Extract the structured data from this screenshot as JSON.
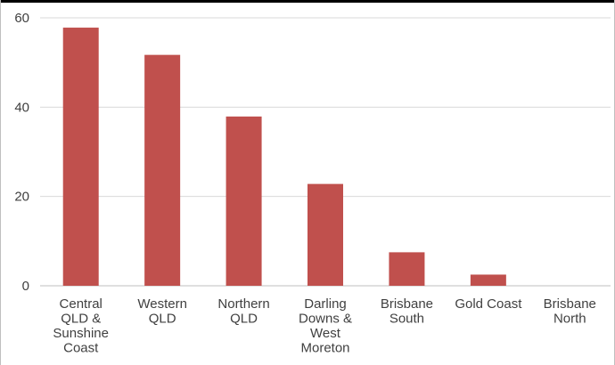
{
  "chart_data": {
    "type": "bar",
    "title": "",
    "xlabel": "",
    "ylabel": "",
    "categories": [
      [
        "Central",
        "QLD &",
        "Sunshine",
        "Coast"
      ],
      [
        "Western",
        "QLD"
      ],
      [
        "Northern",
        "QLD"
      ],
      [
        "Darling",
        "Downs &",
        "West",
        "Moreton"
      ],
      [
        "Brisbane",
        "South"
      ],
      [
        "Gold Coast"
      ],
      [
        "Brisbane",
        "North"
      ]
    ],
    "values": [
      57.8,
      51.7,
      37.9,
      22.8,
      7.5,
      2.5,
      0
    ],
    "ylim": [
      0,
      60
    ],
    "yticks": [
      0,
      20,
      40,
      60
    ],
    "bar_color": "#c0504d",
    "grid": true,
    "legend": "none"
  }
}
